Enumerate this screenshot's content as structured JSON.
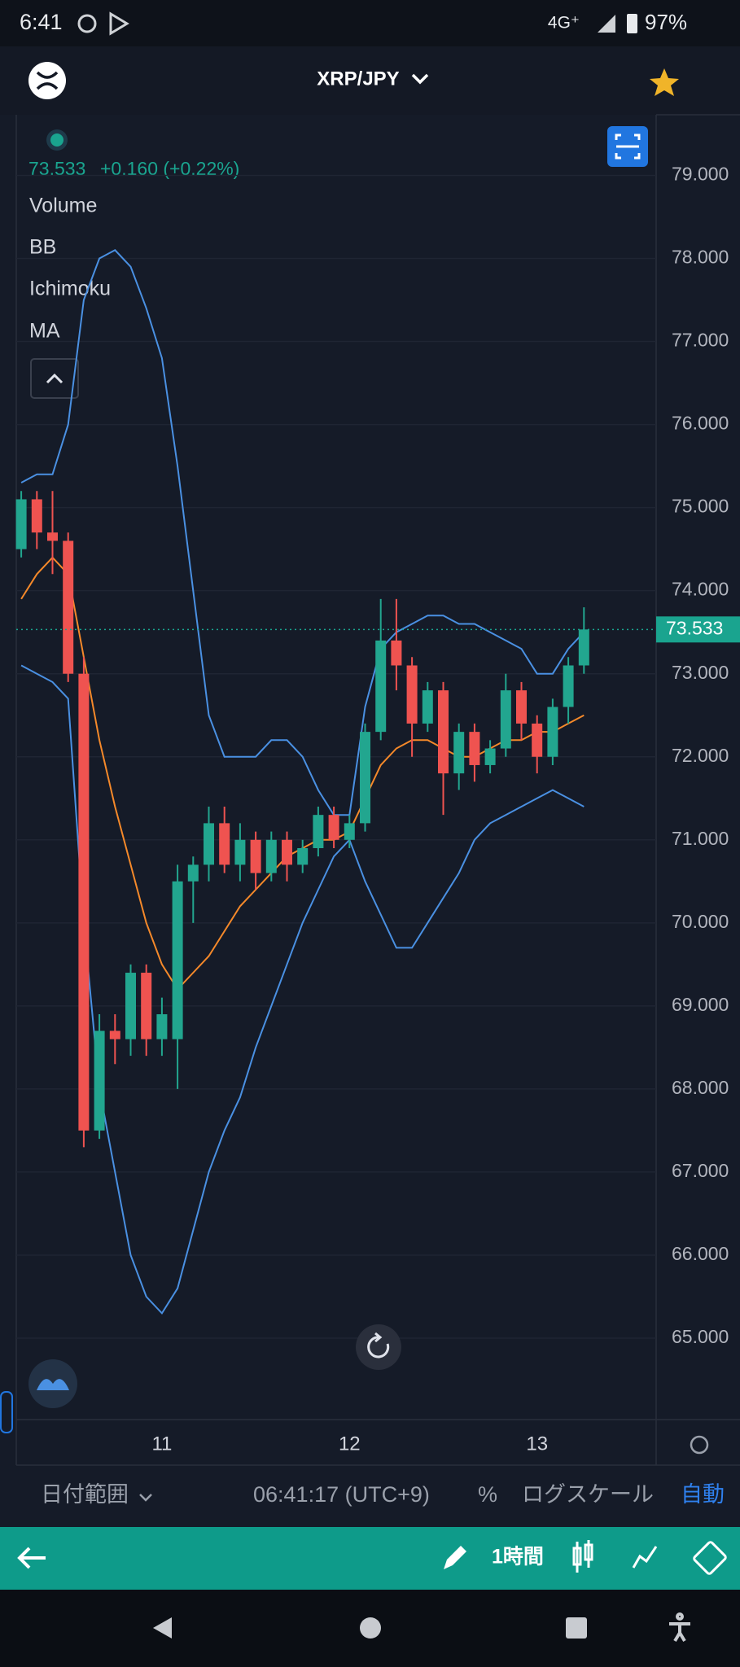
{
  "status_bar": {
    "time": "6:41",
    "network": "4G⁺",
    "battery": "97%"
  },
  "header": {
    "symbol": "XRP/JPY"
  },
  "quote": {
    "price": "73.533",
    "change": "+0.160 (+0.22%)"
  },
  "indicator_labels": [
    "Volume",
    "Ichimoku"
  ],
  "chart_data": {
    "type": "candlestick",
    "categories": [
      null,
      null,
      null,
      null,
      null,
      null,
      null,
      null,
      null,
      "11",
      null,
      null,
      null,
      null,
      null,
      null,
      null,
      null,
      null,
      null,
      null,
      "12",
      null,
      null,
      null,
      null,
      null,
      null,
      null,
      null,
      null,
      null,
      null,
      "13",
      null,
      null,
      null
    ],
    "open": [
      74.5,
      75.1,
      74.7,
      74.6,
      73.0,
      67.5,
      68.7,
      68.6,
      69.4,
      68.6,
      68.6,
      70.5,
      70.7,
      71.2,
      70.7,
      71.0,
      70.6,
      71.0,
      70.7,
      70.9,
      71.3,
      71.0,
      71.2,
      72.3,
      73.4,
      73.1,
      72.4,
      72.8,
      71.8,
      72.3,
      71.9,
      72.1,
      72.8,
      72.4,
      72.0,
      72.6,
      73.1
    ],
    "high": [
      75.2,
      75.2,
      75.2,
      74.7,
      73.2,
      68.9,
      68.9,
      69.5,
      69.5,
      69.1,
      70.7,
      70.8,
      71.4,
      71.4,
      71.2,
      71.1,
      71.1,
      71.1,
      71.0,
      71.4,
      71.4,
      71.3,
      72.4,
      73.9,
      73.9,
      73.2,
      72.9,
      72.9,
      72.4,
      72.4,
      72.2,
      73.0,
      72.9,
      72.5,
      72.7,
      73.2,
      73.8
    ],
    "low": [
      74.4,
      74.5,
      74.2,
      72.9,
      67.3,
      67.4,
      68.3,
      68.4,
      68.4,
      68.4,
      68.0,
      70.0,
      70.5,
      70.6,
      70.5,
      70.4,
      70.5,
      70.5,
      70.6,
      70.8,
      70.9,
      70.9,
      71.1,
      72.2,
      72.8,
      72.0,
      72.3,
      71.3,
      71.6,
      71.7,
      71.8,
      72.0,
      72.2,
      71.8,
      71.9,
      72.4,
      73.0
    ],
    "close": [
      75.1,
      74.7,
      74.6,
      73.0,
      67.5,
      68.7,
      68.6,
      69.4,
      68.6,
      68.9,
      70.5,
      70.7,
      71.2,
      70.7,
      71.0,
      70.6,
      71.0,
      70.7,
      70.9,
      71.3,
      71.0,
      71.2,
      72.3,
      73.4,
      73.1,
      72.4,
      72.8,
      71.8,
      72.3,
      71.9,
      72.1,
      72.8,
      72.4,
      72.0,
      72.6,
      73.1,
      73.533
    ],
    "up_color": "#22a68f",
    "down_color": "#ef5350",
    "series": [
      {
        "name": "BB",
        "color": "#4a90e2",
        "upper": [
          75.3,
          75.4,
          75.4,
          76.0,
          77.5,
          78.0,
          78.1,
          77.9,
          77.4,
          76.8,
          75.5,
          74.0,
          72.5,
          72.0,
          72.0,
          72.0,
          72.2,
          72.2,
          72.0,
          71.6,
          71.3,
          71.3,
          72.6,
          73.3,
          73.5,
          73.6,
          73.7,
          73.7,
          73.6,
          73.6,
          73.5,
          73.4,
          73.3,
          73.0,
          73.0,
          73.3,
          73.5
        ],
        "lower": [
          73.1,
          73.0,
          72.9,
          72.7,
          70.0,
          68.0,
          67.0,
          66.0,
          65.5,
          65.3,
          65.6,
          66.3,
          67.0,
          67.5,
          67.9,
          68.5,
          69.0,
          69.5,
          70.0,
          70.4,
          70.8,
          71.0,
          70.5,
          70.1,
          69.7,
          69.7,
          70.0,
          70.3,
          70.6,
          71.0,
          71.2,
          71.3,
          71.4,
          71.5,
          71.6,
          71.5,
          71.4
        ]
      },
      {
        "name": "MA",
        "color": "#f5892a",
        "values": [
          73.9,
          74.2,
          74.4,
          74.2,
          73.2,
          72.2,
          71.4,
          70.7,
          70.0,
          69.5,
          69.2,
          69.4,
          69.6,
          69.9,
          70.2,
          70.4,
          70.6,
          70.8,
          70.9,
          71.0,
          71.0,
          71.1,
          71.5,
          71.9,
          72.1,
          72.2,
          72.2,
          72.1,
          72.0,
          72.0,
          72.1,
          72.2,
          72.2,
          72.3,
          72.3,
          72.4,
          72.5
        ]
      }
    ],
    "last_price": {
      "value": 73.533,
      "label": "73.533"
    },
    "ylim": [
      64.02,
      79.73
    ],
    "yticks": [
      {
        "value": 65,
        "label": "65.000"
      },
      {
        "value": 66,
        "label": "66.000"
      },
      {
        "value": 67,
        "label": "67.000"
      },
      {
        "value": 68,
        "label": "68.000"
      },
      {
        "value": 69,
        "label": "69.000"
      },
      {
        "value": 70,
        "label": "70.000"
      },
      {
        "value": 71,
        "label": "71.000"
      },
      {
        "value": 72,
        "label": "72.000"
      },
      {
        "value": 73,
        "label": "73.000"
      },
      {
        "value": 74,
        "label": "74.000"
      },
      {
        "value": 75,
        "label": "75.000"
      },
      {
        "value": 76,
        "label": "76.000"
      },
      {
        "value": 77,
        "label": "77.000"
      },
      {
        "value": 78,
        "label": "78.000"
      },
      {
        "value": 79,
        "label": "79.000"
      }
    ],
    "grid": true
  },
  "bottom_bar": {
    "date_range": "日付範囲",
    "clock": "06:41:17 (UTC+9)",
    "percent": "%",
    "log_scale": "ログスケール",
    "auto": "自動"
  },
  "toolbar": {
    "interval": "1時間"
  }
}
